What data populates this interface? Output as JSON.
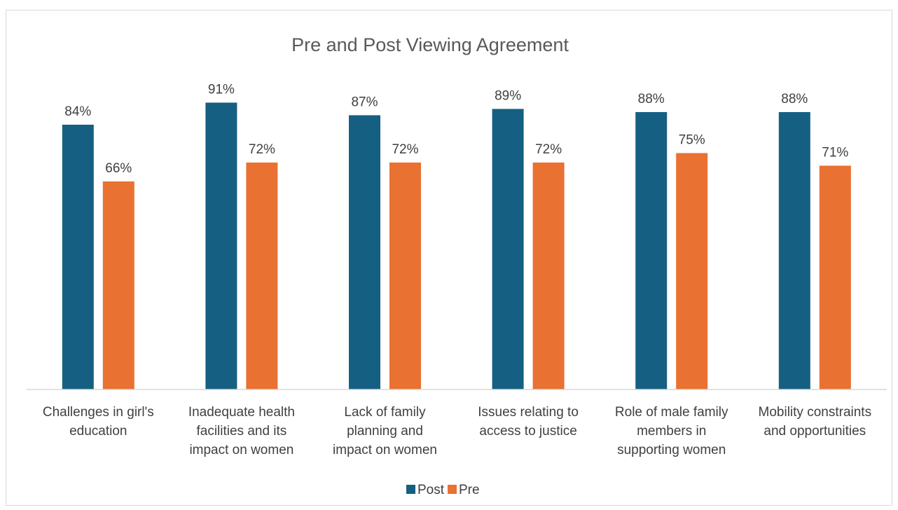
{
  "chart_data": {
    "type": "bar",
    "title": "Pre and Post Viewing Agreement",
    "xlabel": "",
    "ylabel": "",
    "categories": [
      [
        "Challenges in girl's",
        "education"
      ],
      [
        "Inadequate health",
        "facilities and its",
        "impact on women"
      ],
      [
        "Lack of family",
        "planning and",
        "impact on women"
      ],
      [
        "Issues relating to",
        "access to justice"
      ],
      [
        "Role of male family",
        "members in",
        "supporting women"
      ],
      [
        "Mobility constraints",
        "and opportunities"
      ]
    ],
    "series": [
      {
        "name": "Post",
        "values": [
          84,
          91,
          87,
          89,
          88,
          88
        ],
        "labels": [
          "84%",
          "91%",
          "87%",
          "89%",
          "88%",
          "88%"
        ],
        "color": "#156082"
      },
      {
        "name": "Pre",
        "values": [
          66,
          72,
          72,
          72,
          75,
          71
        ],
        "labels": [
          "66%",
          "72%",
          "72%",
          "72%",
          "75%",
          "71%"
        ],
        "color": "#E97132"
      }
    ],
    "ylim": [
      0,
      100
    ],
    "grid": false,
    "legend": "bottom"
  }
}
